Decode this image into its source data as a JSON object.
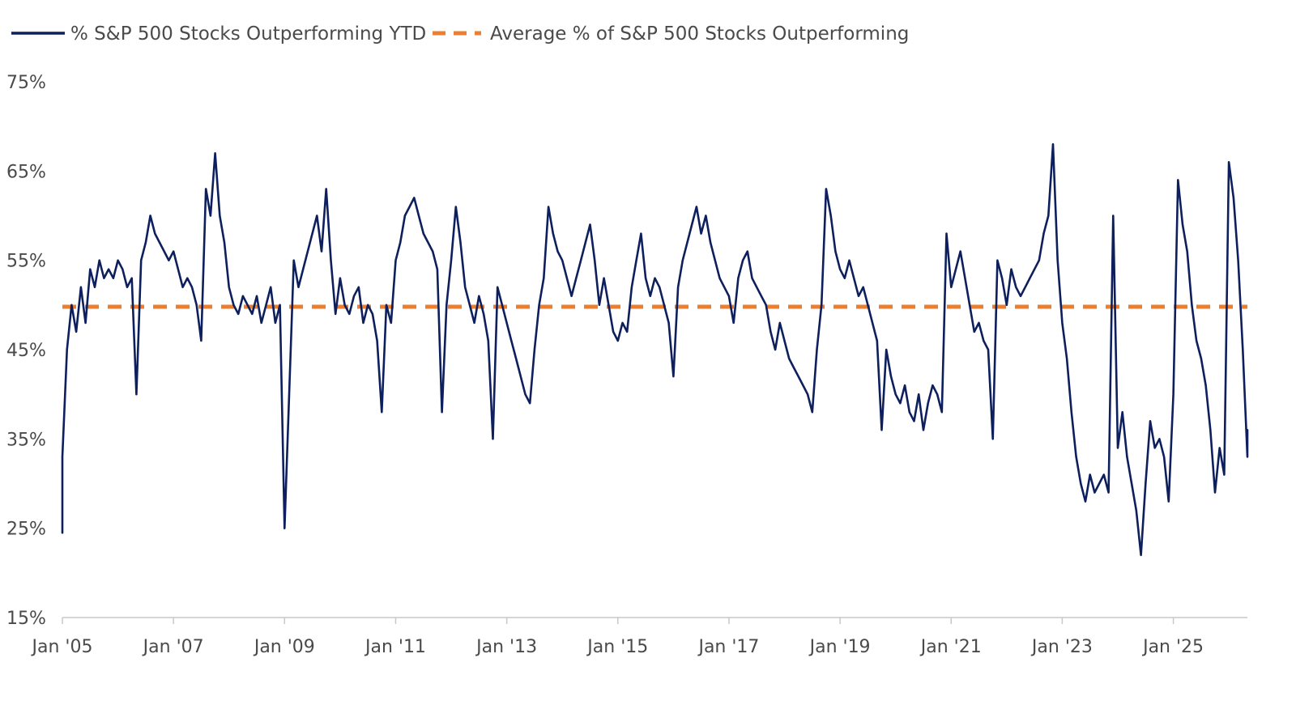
{
  "chart_data": {
    "type": "line",
    "title": "",
    "xlabel": "",
    "ylabel": "",
    "x_ticks": [
      "Jan '05",
      "Jan '07",
      "Jan '09",
      "Jan '11",
      "Jan '13",
      "Jan '15",
      "Jan '17",
      "Jan '19",
      "Jan '21",
      "Jan '23",
      "Jan '25"
    ],
    "x_tick_dates": [
      "2005-01",
      "2007-01",
      "2009-01",
      "2011-01",
      "2013-01",
      "2015-01",
      "2017-01",
      "2019-01",
      "2021-01",
      "2023-01",
      "2025-01"
    ],
    "xlim": [
      "2005-01",
      "2026-05"
    ],
    "y_ticks": [
      "15%",
      "25%",
      "35%",
      "45%",
      "55%",
      "65%",
      "75%"
    ],
    "y_tick_values": [
      15,
      25,
      35,
      45,
      55,
      65,
      75
    ],
    "ylim": [
      15,
      75
    ],
    "grid": false,
    "legend": {
      "placement": "top-left"
    },
    "series": [
      {
        "name": "% S&P 500 Stocks Outperforming YTD",
        "color": "#0d1f5c",
        "style": "solid",
        "points": [
          [
            "2005-01",
            24.5
          ],
          [
            "2005-01",
            33
          ],
          [
            "2005-02",
            45
          ],
          [
            "2005-03",
            50
          ],
          [
            "2005-04",
            47
          ],
          [
            "2005-05",
            52
          ],
          [
            "2005-06",
            48
          ],
          [
            "2005-07",
            54
          ],
          [
            "2005-08",
            52
          ],
          [
            "2005-09",
            55
          ],
          [
            "2005-10",
            53
          ],
          [
            "2005-11",
            54
          ],
          [
            "2005-12",
            53
          ],
          [
            "2006-01",
            55
          ],
          [
            "2006-02",
            54
          ],
          [
            "2006-03",
            52
          ],
          [
            "2006-04",
            53
          ],
          [
            "2006-05",
            40
          ],
          [
            "2006-06",
            55
          ],
          [
            "2006-07",
            57
          ],
          [
            "2006-08",
            60
          ],
          [
            "2006-09",
            58
          ],
          [
            "2006-10",
            57
          ],
          [
            "2006-11",
            56
          ],
          [
            "2006-12",
            55
          ],
          [
            "2007-01",
            56
          ],
          [
            "2007-02",
            54
          ],
          [
            "2007-03",
            52
          ],
          [
            "2007-04",
            53
          ],
          [
            "2007-05",
            52
          ],
          [
            "2007-06",
            50
          ],
          [
            "2007-07",
            46
          ],
          [
            "2007-08",
            63
          ],
          [
            "2007-09",
            60
          ],
          [
            "2007-10",
            67
          ],
          [
            "2007-11",
            60
          ],
          [
            "2007-12",
            57
          ],
          [
            "2008-01",
            52
          ],
          [
            "2008-02",
            50
          ],
          [
            "2008-03",
            49
          ],
          [
            "2008-04",
            51
          ],
          [
            "2008-05",
            50
          ],
          [
            "2008-06",
            49
          ],
          [
            "2008-07",
            51
          ],
          [
            "2008-08",
            48
          ],
          [
            "2008-09",
            50
          ],
          [
            "2008-10",
            52
          ],
          [
            "2008-11",
            48
          ],
          [
            "2008-12",
            50
          ],
          [
            "2009-01",
            25
          ],
          [
            "2009-02",
            40
          ],
          [
            "2009-03",
            55
          ],
          [
            "2009-04",
            52
          ],
          [
            "2009-05",
            54
          ],
          [
            "2009-06",
            56
          ],
          [
            "2009-07",
            58
          ],
          [
            "2009-08",
            60
          ],
          [
            "2009-09",
            56
          ],
          [
            "2009-10",
            63
          ],
          [
            "2009-11",
            55
          ],
          [
            "2009-12",
            49
          ],
          [
            "2010-01",
            53
          ],
          [
            "2010-02",
            50
          ],
          [
            "2010-03",
            49
          ],
          [
            "2010-04",
            51
          ],
          [
            "2010-05",
            52
          ],
          [
            "2010-06",
            48
          ],
          [
            "2010-07",
            50
          ],
          [
            "2010-08",
            49
          ],
          [
            "2010-09",
            46
          ],
          [
            "2010-10",
            38
          ],
          [
            "2010-11",
            50
          ],
          [
            "2010-12",
            48
          ],
          [
            "2011-01",
            55
          ],
          [
            "2011-02",
            57
          ],
          [
            "2011-03",
            60
          ],
          [
            "2011-04",
            61
          ],
          [
            "2011-05",
            62
          ],
          [
            "2011-06",
            60
          ],
          [
            "2011-07",
            58
          ],
          [
            "2011-08",
            57
          ],
          [
            "2011-09",
            56
          ],
          [
            "2011-10",
            54
          ],
          [
            "2011-11",
            38
          ],
          [
            "2011-12",
            50
          ],
          [
            "2012-01",
            55
          ],
          [
            "2012-02",
            61
          ],
          [
            "2012-03",
            57
          ],
          [
            "2012-04",
            52
          ],
          [
            "2012-05",
            50
          ],
          [
            "2012-06",
            48
          ],
          [
            "2012-07",
            51
          ],
          [
            "2012-08",
            49
          ],
          [
            "2012-09",
            46
          ],
          [
            "2012-10",
            35
          ],
          [
            "2012-11",
            52
          ],
          [
            "2012-12",
            50
          ],
          [
            "2013-01",
            48
          ],
          [
            "2013-02",
            46
          ],
          [
            "2013-03",
            44
          ],
          [
            "2013-04",
            42
          ],
          [
            "2013-05",
            40
          ],
          [
            "2013-06",
            39
          ],
          [
            "2013-07",
            45
          ],
          [
            "2013-08",
            50
          ],
          [
            "2013-09",
            53
          ],
          [
            "2013-10",
            61
          ],
          [
            "2013-11",
            58
          ],
          [
            "2013-12",
            56
          ],
          [
            "2014-01",
            55
          ],
          [
            "2014-02",
            53
          ],
          [
            "2014-03",
            51
          ],
          [
            "2014-04",
            53
          ],
          [
            "2014-05",
            55
          ],
          [
            "2014-06",
            57
          ],
          [
            "2014-07",
            59
          ],
          [
            "2014-08",
            55
          ],
          [
            "2014-09",
            50
          ],
          [
            "2014-10",
            53
          ],
          [
            "2014-11",
            50
          ],
          [
            "2014-12",
            47
          ],
          [
            "2015-01",
            46
          ],
          [
            "2015-02",
            48
          ],
          [
            "2015-03",
            47
          ],
          [
            "2015-04",
            52
          ],
          [
            "2015-05",
            55
          ],
          [
            "2015-06",
            58
          ],
          [
            "2015-07",
            53
          ],
          [
            "2015-08",
            51
          ],
          [
            "2015-09",
            53
          ],
          [
            "2015-10",
            52
          ],
          [
            "2015-11",
            50
          ],
          [
            "2015-12",
            48
          ],
          [
            "2016-01",
            42
          ],
          [
            "2016-02",
            52
          ],
          [
            "2016-03",
            55
          ],
          [
            "2016-04",
            57
          ],
          [
            "2016-05",
            59
          ],
          [
            "2016-06",
            61
          ],
          [
            "2016-07",
            58
          ],
          [
            "2016-08",
            60
          ],
          [
            "2016-09",
            57
          ],
          [
            "2016-10",
            55
          ],
          [
            "2016-11",
            53
          ],
          [
            "2016-12",
            52
          ],
          [
            "2017-01",
            51
          ],
          [
            "2017-02",
            48
          ],
          [
            "2017-03",
            53
          ],
          [
            "2017-04",
            55
          ],
          [
            "2017-05",
            56
          ],
          [
            "2017-06",
            53
          ],
          [
            "2017-07",
            52
          ],
          [
            "2017-08",
            51
          ],
          [
            "2017-09",
            50
          ],
          [
            "2017-10",
            47
          ],
          [
            "2017-11",
            45
          ],
          [
            "2017-12",
            48
          ],
          [
            "2018-01",
            46
          ],
          [
            "2018-02",
            44
          ],
          [
            "2018-03",
            43
          ],
          [
            "2018-04",
            42
          ],
          [
            "2018-05",
            41
          ],
          [
            "2018-06",
            40
          ],
          [
            "2018-07",
            38
          ],
          [
            "2018-08",
            45
          ],
          [
            "2018-09",
            50
          ],
          [
            "2018-10",
            63
          ],
          [
            "2018-11",
            60
          ],
          [
            "2018-12",
            56
          ],
          [
            "2019-01",
            54
          ],
          [
            "2019-02",
            53
          ],
          [
            "2019-03",
            55
          ],
          [
            "2019-04",
            53
          ],
          [
            "2019-05",
            51
          ],
          [
            "2019-06",
            52
          ],
          [
            "2019-07",
            50
          ],
          [
            "2019-08",
            48
          ],
          [
            "2019-09",
            46
          ],
          [
            "2019-10",
            36
          ],
          [
            "2019-11",
            45
          ],
          [
            "2019-12",
            42
          ],
          [
            "2020-01",
            40
          ],
          [
            "2020-02",
            39
          ],
          [
            "2020-03",
            41
          ],
          [
            "2020-04",
            38
          ],
          [
            "2020-05",
            37
          ],
          [
            "2020-06",
            40
          ],
          [
            "2020-07",
            36
          ],
          [
            "2020-08",
            39
          ],
          [
            "2020-09",
            41
          ],
          [
            "2020-10",
            40
          ],
          [
            "2020-11",
            38
          ],
          [
            "2020-12",
            58
          ],
          [
            "2021-01",
            52
          ],
          [
            "2021-02",
            54
          ],
          [
            "2021-03",
            56
          ],
          [
            "2021-04",
            53
          ],
          [
            "2021-05",
            50
          ],
          [
            "2021-06",
            47
          ],
          [
            "2021-07",
            48
          ],
          [
            "2021-08",
            46
          ],
          [
            "2021-09",
            45
          ],
          [
            "2021-10",
            35
          ],
          [
            "2021-11",
            55
          ],
          [
            "2021-12",
            53
          ],
          [
            "2022-01",
            50
          ],
          [
            "2022-02",
            54
          ],
          [
            "2022-03",
            52
          ],
          [
            "2022-04",
            51
          ],
          [
            "2022-05",
            52
          ],
          [
            "2022-06",
            53
          ],
          [
            "2022-07",
            54
          ],
          [
            "2022-08",
            55
          ],
          [
            "2022-09",
            58
          ],
          [
            "2022-10",
            60
          ],
          [
            "2022-11",
            68
          ],
          [
            "2022-12",
            55
          ],
          [
            "2023-01",
            48
          ],
          [
            "2023-02",
            44
          ],
          [
            "2023-03",
            38
          ],
          [
            "2023-04",
            33
          ],
          [
            "2023-05",
            30
          ],
          [
            "2023-06",
            28
          ],
          [
            "2023-07",
            31
          ],
          [
            "2023-08",
            29
          ],
          [
            "2023-09",
            30
          ],
          [
            "2023-10",
            31
          ],
          [
            "2023-11",
            29
          ],
          [
            "2023-12",
            60
          ],
          [
            "2024-01",
            34
          ],
          [
            "2024-02",
            38
          ],
          [
            "2024-03",
            33
          ],
          [
            "2024-04",
            30
          ],
          [
            "2024-05",
            27
          ],
          [
            "2024-06",
            22
          ],
          [
            "2024-07",
            30
          ],
          [
            "2024-08",
            37
          ],
          [
            "2024-09",
            34
          ],
          [
            "2024-10",
            35
          ],
          [
            "2024-11",
            33
          ],
          [
            "2024-12",
            28
          ],
          [
            "2025-01",
            40
          ],
          [
            "2025-02",
            64
          ],
          [
            "2025-03",
            59
          ],
          [
            "2025-04",
            56
          ],
          [
            "2025-05",
            50
          ],
          [
            "2025-06",
            46
          ],
          [
            "2025-07",
            44
          ],
          [
            "2025-08",
            41
          ],
          [
            "2025-09",
            36
          ],
          [
            "2025-10",
            29
          ],
          [
            "2025-11",
            34
          ],
          [
            "2025-12",
            31
          ],
          [
            "2026-01",
            66
          ],
          [
            "2026-02",
            62
          ],
          [
            "2026-03",
            55
          ],
          [
            "2026-04",
            45
          ],
          [
            "2026-05",
            33
          ],
          [
            "2026-05",
            36
          ]
        ]
      },
      {
        "name": "Average % of S&P 500 Stocks Outperforming",
        "color": "#ec7e2f",
        "style": "dashed",
        "value": 49.8
      }
    ]
  }
}
